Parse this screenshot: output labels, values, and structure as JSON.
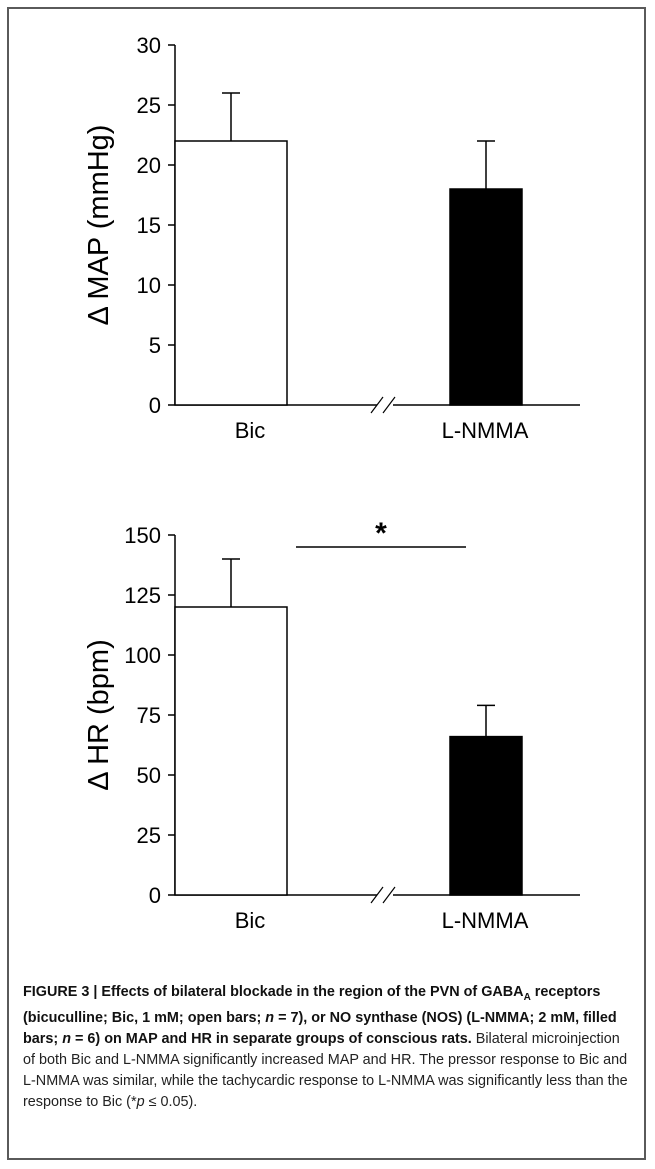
{
  "chart_data": [
    {
      "type": "bar",
      "categories": [
        "Bic",
        "L-NMMA"
      ],
      "values": [
        22,
        18
      ],
      "errors": [
        4,
        4
      ],
      "bar_fills": [
        "#ffffff",
        "#000000"
      ],
      "ylabel": "Δ MAP (mmHg)",
      "ylim": [
        0,
        30
      ],
      "yticks": [
        "0",
        "5",
        "10",
        "15",
        "20",
        "25",
        "30"
      ],
      "axis_break": true,
      "grid": false
    },
    {
      "type": "bar",
      "categories": [
        "Bic",
        "L-NMMA"
      ],
      "values": [
        120,
        66
      ],
      "errors": [
        20,
        13
      ],
      "bar_fills": [
        "#ffffff",
        "#000000"
      ],
      "ylabel": "Δ HR (bpm)",
      "ylim": [
        0,
        150
      ],
      "yticks": [
        "0",
        "25",
        "50",
        "75",
        "100",
        "125",
        "150"
      ],
      "axis_break": true,
      "grid": false,
      "annotation": "*"
    }
  ],
  "caption": {
    "bold_lead": "FIGURE 3 | Effects of bilateral blockade in the region of the PVN of GABA",
    "bold_sub": "A",
    "bold_pre": " receptors (bicuculline; Bic, 1 mM; open bars; ",
    "bold_n1": "n",
    "bold_mid": " = 7), or NO synthase (NOS) (L-NMMA; 2 mM, filled bars; ",
    "bold_n2": "n",
    "bold_end": " = 6) on MAP and HR in separate groups of conscious rats.",
    "body": " Bilateral microinjection of both Bic and L-NMMA significantly increased MAP and HR. The pressor response to Bic and L-NMMA was similar, while the tachycardic response to L-NMMA was significantly less than the response to Bic (*",
    "p_symbol": "p",
    "body_end": " ≤ 0.05)."
  }
}
